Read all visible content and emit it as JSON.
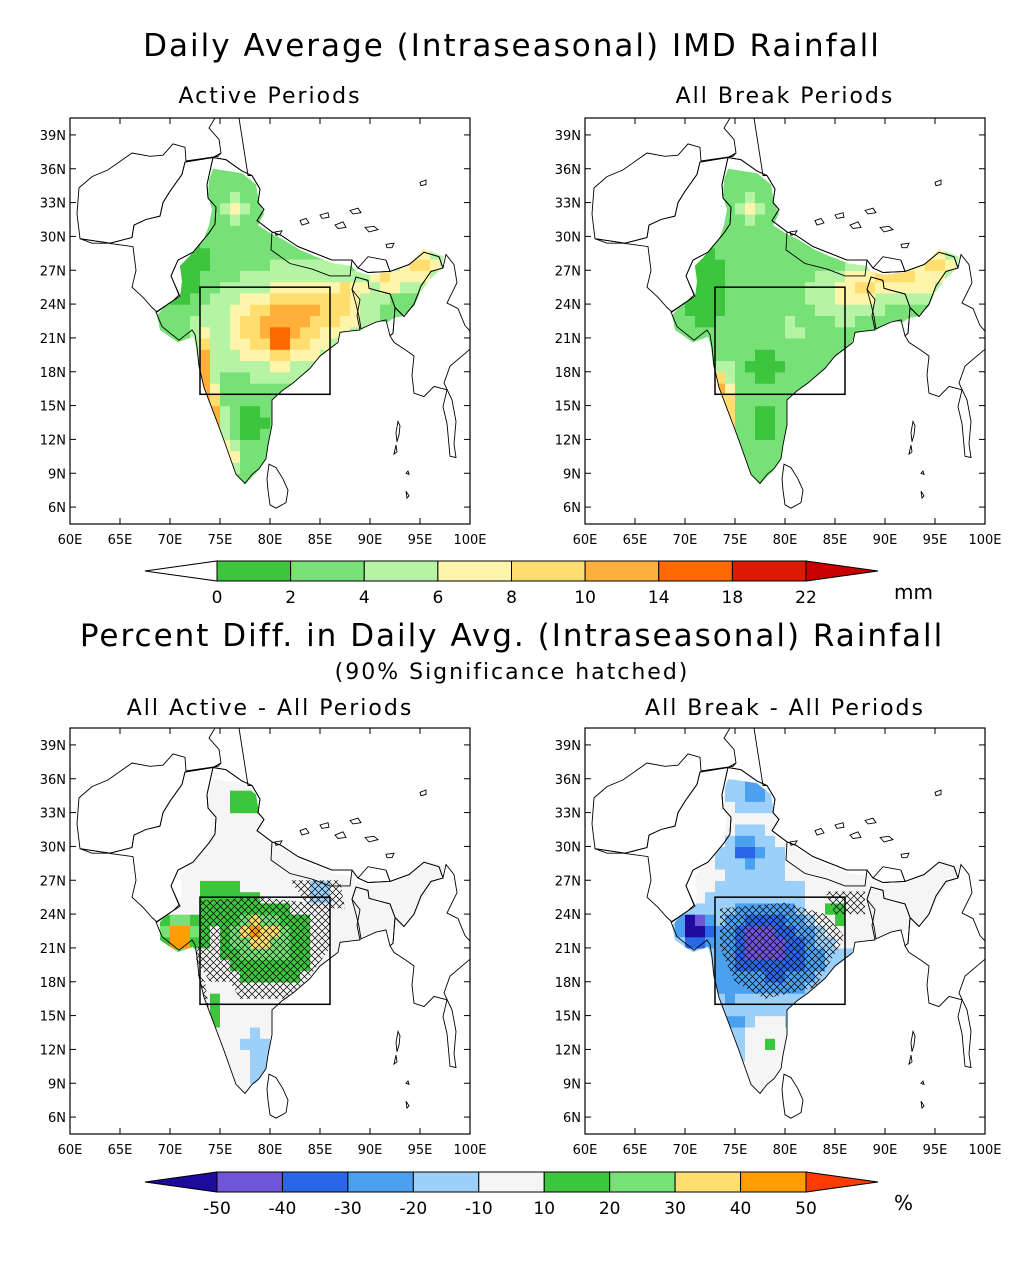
{
  "top": {
    "title": "Daily Average (Intraseasonal) IMD Rainfall",
    "panels": [
      {
        "title": "Active Periods"
      },
      {
        "title": "All Break Periods"
      }
    ],
    "colorbar": {
      "ticks": [
        "0",
        "2",
        "4",
        "6",
        "8",
        "10",
        "14",
        "18",
        "22"
      ],
      "unit": "mm",
      "colors": [
        "#ffffff",
        "#3ec53e",
        "#77e077",
        "#b4f4a4",
        "#fff5aa",
        "#ffdd6e",
        "#ffaf3a",
        "#ff6a00",
        "#dd1a00",
        "#c80000"
      ]
    }
  },
  "bottom": {
    "title": "Percent Diff. in Daily Avg. (Intraseasonal) Rainfall",
    "subtitle": "(90% Significance hatched)",
    "panels": [
      {
        "title": "All Active - All Periods"
      },
      {
        "title": "All Break - All Periods"
      }
    ],
    "colorbar": {
      "ticks": [
        "-50",
        "-40",
        "-30",
        "-20",
        "-10",
        "10",
        "20",
        "30",
        "40",
        "50"
      ],
      "unit": "%",
      "colors": [
        "#1e0a9c",
        "#6f55d8",
        "#2a67e8",
        "#4ba0f0",
        "#9cd0f8",
        "#f5f5f5",
        "#3ec53e",
        "#77e077",
        "#ffdd6e",
        "#ff9c00",
        "#ff3c00"
      ]
    }
  },
  "axes": {
    "lon_ticks": [
      "60E",
      "65E",
      "70E",
      "75E",
      "80E",
      "85E",
      "90E",
      "95E",
      "100E"
    ],
    "lat_ticks": [
      "39N",
      "36N",
      "33N",
      "30N",
      "27N",
      "24N",
      "21N",
      "18N",
      "15N",
      "12N",
      "9N",
      "6N"
    ],
    "lon_range": [
      60,
      100
    ],
    "lat_range": [
      4.5,
      40.5
    ],
    "box": {
      "lon": [
        73,
        86
      ],
      "lat": [
        16,
        25.5
      ]
    }
  }
}
